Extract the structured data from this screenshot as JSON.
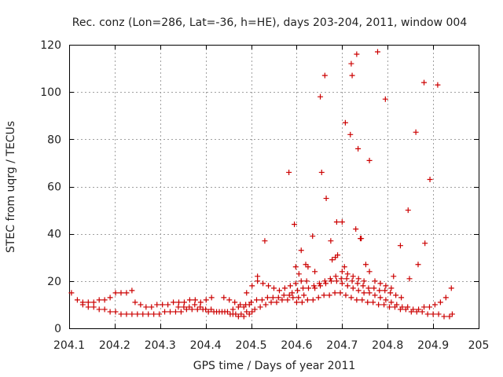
{
  "chart_data": {
    "type": "scatter",
    "title": "Rec. conz (Lon=286, Lat=-36, h=HE), days 203-204, 2011, window 004",
    "xlabel": "GPS time / Days of year 2011",
    "ylabel": "STEC from uqrg / TECUs",
    "xlim": [
      204.1,
      205
    ],
    "ylim": [
      0,
      120
    ],
    "x_ticks": [
      "204.1",
      "204.2",
      "204.3",
      "204.4",
      "204.5",
      "204.6",
      "204.7",
      "204.8",
      "204.9",
      "205"
    ],
    "y_ticks": [
      "0",
      "20",
      "40",
      "60",
      "80",
      "100",
      "120"
    ],
    "x_tick_values": [
      204.1,
      204.2,
      204.3,
      204.4,
      204.5,
      204.6,
      204.7,
      204.8,
      204.9,
      205.0
    ],
    "y_tick_values": [
      0,
      20,
      40,
      60,
      80,
      100,
      120
    ],
    "grid": true,
    "marker": "plus",
    "color": "#cc0000",
    "series": [
      {
        "name": "STEC",
        "points": [
          [
            204.105,
            15
          ],
          [
            204.118,
            12
          ],
          [
            204.13,
            11
          ],
          [
            204.142,
            11
          ],
          [
            204.154,
            11
          ],
          [
            204.166,
            12
          ],
          [
            204.178,
            12
          ],
          [
            204.19,
            13
          ],
          [
            204.202,
            15
          ],
          [
            204.214,
            15
          ],
          [
            204.226,
            15
          ],
          [
            204.238,
            16
          ],
          [
            204.13,
            10
          ],
          [
            204.142,
            9
          ],
          [
            204.154,
            9
          ],
          [
            204.166,
            8
          ],
          [
            204.178,
            8
          ],
          [
            204.19,
            7
          ],
          [
            204.202,
            7
          ],
          [
            204.214,
            6
          ],
          [
            204.226,
            6
          ],
          [
            204.238,
            6
          ],
          [
            204.25,
            6
          ],
          [
            204.262,
            6
          ],
          [
            204.274,
            6
          ],
          [
            204.286,
            6
          ],
          [
            204.298,
            6
          ],
          [
            204.31,
            7
          ],
          [
            204.322,
            7
          ],
          [
            204.334,
            7
          ],
          [
            204.346,
            7
          ],
          [
            204.358,
            8
          ],
          [
            204.37,
            8
          ],
          [
            204.382,
            8
          ],
          [
            204.394,
            8
          ],
          [
            204.406,
            7
          ],
          [
            204.418,
            7
          ],
          [
            204.43,
            7
          ],
          [
            204.442,
            7
          ],
          [
            204.454,
            6
          ],
          [
            204.466,
            6
          ],
          [
            204.478,
            6
          ],
          [
            204.49,
            7
          ],
          [
            204.502,
            7
          ],
          [
            204.245,
            11
          ],
          [
            204.257,
            10
          ],
          [
            204.269,
            9
          ],
          [
            204.281,
            9
          ],
          [
            204.293,
            10
          ],
          [
            204.305,
            10
          ],
          [
            204.317,
            10
          ],
          [
            204.329,
            11
          ],
          [
            204.341,
            11
          ],
          [
            204.353,
            11
          ],
          [
            204.365,
            12
          ],
          [
            204.377,
            12
          ],
          [
            204.389,
            11
          ],
          [
            204.401,
            12
          ],
          [
            204.413,
            13
          ],
          [
            204.34,
            9
          ],
          [
            204.352,
            9
          ],
          [
            204.364,
            9
          ],
          [
            204.376,
            10
          ],
          [
            204.388,
            9
          ],
          [
            204.4,
            8
          ],
          [
            204.412,
            8
          ],
          [
            204.424,
            7
          ],
          [
            204.436,
            7
          ],
          [
            204.448,
            7
          ],
          [
            204.46,
            8
          ],
          [
            204.472,
            9
          ],
          [
            204.484,
            9
          ],
          [
            204.496,
            10
          ],
          [
            204.44,
            13
          ],
          [
            204.452,
            12
          ],
          [
            204.464,
            11
          ],
          [
            204.476,
            10
          ],
          [
            204.488,
            10
          ],
          [
            204.5,
            11
          ],
          [
            204.512,
            12
          ],
          [
            204.524,
            12
          ],
          [
            204.536,
            13
          ],
          [
            204.548,
            13
          ],
          [
            204.56,
            13
          ],
          [
            204.572,
            14
          ],
          [
            204.584,
            14
          ],
          [
            204.46,
            6
          ],
          [
            204.472,
            5
          ],
          [
            204.484,
            5
          ],
          [
            204.496,
            6
          ],
          [
            204.508,
            8
          ],
          [
            204.52,
            9
          ],
          [
            204.532,
            10
          ],
          [
            204.544,
            11
          ],
          [
            204.556,
            11
          ],
          [
            204.568,
            12
          ],
          [
            204.58,
            12
          ],
          [
            204.592,
            13
          ],
          [
            204.604,
            13
          ],
          [
            204.616,
            14
          ],
          [
            204.49,
            15
          ],
          [
            204.502,
            18
          ],
          [
            204.514,
            20
          ],
          [
            204.526,
            19
          ],
          [
            204.538,
            18
          ],
          [
            204.55,
            17
          ],
          [
            204.562,
            16
          ],
          [
            204.574,
            17
          ],
          [
            204.586,
            18
          ],
          [
            204.598,
            19
          ],
          [
            204.61,
            20
          ],
          [
            204.622,
            20
          ],
          [
            204.514,
            22
          ],
          [
            204.53,
            37
          ],
          [
            204.583,
            66
          ],
          [
            204.595,
            44
          ],
          [
            204.598,
            26
          ],
          [
            204.605,
            23
          ],
          [
            204.61,
            33
          ],
          [
            204.62,
            27
          ],
          [
            204.625,
            26
          ],
          [
            204.635,
            39
          ],
          [
            204.64,
            24
          ],
          [
            204.652,
            98
          ],
          [
            204.655,
            66
          ],
          [
            204.662,
            107
          ],
          [
            204.665,
            55
          ],
          [
            204.675,
            37
          ],
          [
            204.678,
            29
          ],
          [
            204.685,
            30
          ],
          [
            204.69,
            31
          ],
          [
            204.688,
            45
          ],
          [
            204.7,
            45
          ],
          [
            204.707,
            87
          ],
          [
            204.705,
            26
          ],
          [
            204.718,
            82
          ],
          [
            204.72,
            112
          ],
          [
            204.722,
            107
          ],
          [
            204.73,
            42
          ],
          [
            204.732,
            116
          ],
          [
            204.735,
            76
          ],
          [
            204.74,
            38
          ],
          [
            204.742,
            38
          ],
          [
            204.752,
            27
          ],
          [
            204.76,
            71
          ],
          [
            204.778,
            117
          ],
          [
            204.795,
            97
          ],
          [
            204.813,
            22
          ],
          [
            204.828,
            35
          ],
          [
            204.845,
            50
          ],
          [
            204.848,
            21
          ],
          [
            204.862,
            83
          ],
          [
            204.867,
            27
          ],
          [
            204.88,
            104
          ],
          [
            204.882,
            36
          ],
          [
            204.893,
            63
          ],
          [
            204.91,
            103
          ],
          [
            204.59,
            15
          ],
          [
            204.602,
            16
          ],
          [
            204.614,
            17
          ],
          [
            204.626,
            17
          ],
          [
            204.638,
            18
          ],
          [
            204.65,
            19
          ],
          [
            204.662,
            20
          ],
          [
            204.674,
            21
          ],
          [
            204.686,
            22
          ],
          [
            204.698,
            21
          ],
          [
            204.71,
            21
          ],
          [
            204.722,
            20
          ],
          [
            204.734,
            19
          ],
          [
            204.746,
            18
          ],
          [
            204.758,
            17
          ],
          [
            204.77,
            17
          ],
          [
            204.782,
            16
          ],
          [
            204.794,
            16
          ],
          [
            204.806,
            15
          ],
          [
            204.818,
            14
          ],
          [
            204.83,
            13
          ],
          [
            204.6,
            11
          ],
          [
            204.612,
            11
          ],
          [
            204.624,
            12
          ],
          [
            204.636,
            12
          ],
          [
            204.648,
            13
          ],
          [
            204.66,
            14
          ],
          [
            204.672,
            14
          ],
          [
            204.684,
            15
          ],
          [
            204.696,
            15
          ],
          [
            204.708,
            14
          ],
          [
            204.72,
            13
          ],
          [
            204.732,
            12
          ],
          [
            204.744,
            12
          ],
          [
            204.756,
            11
          ],
          [
            204.768,
            11
          ],
          [
            204.78,
            10
          ],
          [
            204.792,
            10
          ],
          [
            204.804,
            9
          ],
          [
            204.816,
            9
          ],
          [
            204.828,
            8
          ],
          [
            204.84,
            8
          ],
          [
            204.852,
            7
          ],
          [
            204.864,
            7
          ],
          [
            204.876,
            7
          ],
          [
            204.888,
            6
          ],
          [
            204.9,
            6
          ],
          [
            204.912,
            6
          ],
          [
            204.924,
            5
          ],
          [
            204.936,
            5
          ],
          [
            204.942,
            6
          ],
          [
            204.64,
            17
          ],
          [
            204.652,
            18
          ],
          [
            204.664,
            19
          ],
          [
            204.676,
            20
          ],
          [
            204.688,
            20
          ],
          [
            204.7,
            19
          ],
          [
            204.712,
            18
          ],
          [
            204.724,
            17
          ],
          [
            204.736,
            16
          ],
          [
            204.748,
            15
          ],
          [
            204.76,
            15
          ],
          [
            204.772,
            14
          ],
          [
            204.784,
            13
          ],
          [
            204.796,
            12
          ],
          [
            204.808,
            11
          ],
          [
            204.82,
            10
          ],
          [
            204.832,
            9
          ],
          [
            204.844,
            9
          ],
          [
            204.856,
            8
          ],
          [
            204.868,
            8
          ],
          [
            204.88,
            9
          ],
          [
            204.892,
            9
          ],
          [
            204.904,
            10
          ],
          [
            204.916,
            11
          ],
          [
            204.928,
            13
          ],
          [
            204.94,
            17
          ],
          [
            204.7,
            24
          ],
          [
            204.712,
            23
          ],
          [
            204.724,
            22
          ],
          [
            204.736,
            21
          ],
          [
            204.748,
            20
          ],
          [
            204.76,
            24
          ],
          [
            204.772,
            20
          ],
          [
            204.784,
            19
          ],
          [
            204.796,
            18
          ],
          [
            204.808,
            17
          ]
        ]
      }
    ]
  }
}
